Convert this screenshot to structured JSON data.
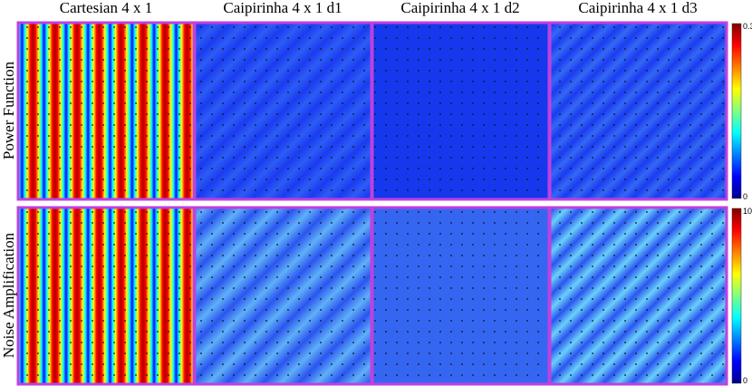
{
  "columns": [
    "Cartesian 4 x 1",
    "Caipirinha 4 x 1 d1",
    "Caipirinha 4 x 1 d2",
    "Caipirinha 4 x 1 d3"
  ],
  "rows": [
    {
      "label": "Power Function",
      "colorbar": {
        "max": "0.3",
        "min": "0"
      }
    },
    {
      "label": "Noise Amplification",
      "colorbar": {
        "max": "10",
        "min": "0"
      }
    }
  ]
}
